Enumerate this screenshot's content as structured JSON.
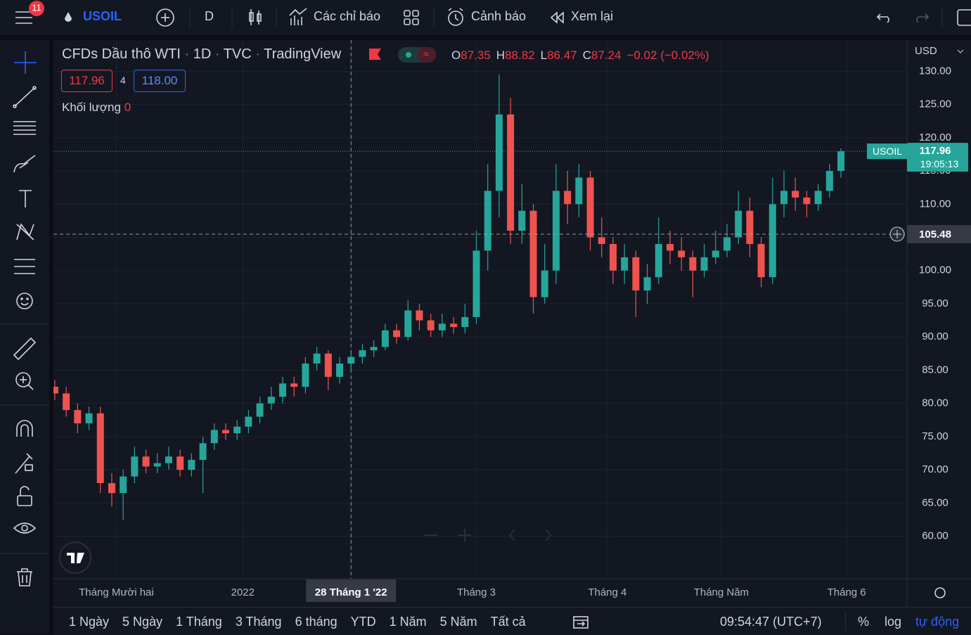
{
  "toolbar": {
    "badge": "11",
    "symbol": "USOIL",
    "interval": "D",
    "indicators": "Các chỉ báo",
    "alerts": "Cảnh báo",
    "replay": "Xem lại"
  },
  "legend": {
    "name": "CFDs Dầu thô WTI",
    "interval": "1D",
    "exchange": "TVC",
    "source": "TradingView",
    "ohlc": [
      {
        "label": "O",
        "value": "87.35"
      },
      {
        "label": "H",
        "value": "88.82"
      },
      {
        "label": "L",
        "value": "86.47"
      },
      {
        "label": "C",
        "value": "87.24"
      }
    ],
    "change": "−0.02 (−0.02%)",
    "bid": "117.96",
    "spread": "4",
    "ask": "118.00",
    "volume_label": "Khối lượng",
    "volume_value": "0"
  },
  "chart_data": {
    "type": "candlestick",
    "currency": "USD",
    "up_color": "#26a69a",
    "down_color": "#ef5350",
    "open": [
      82.5,
      81.5,
      79,
      77,
      78.5,
      68,
      66.5,
      69,
      72,
      70.5,
      71,
      72,
      70,
      71.5,
      74,
      76,
      75.5,
      76.5,
      78,
      80,
      81,
      83,
      82.5,
      86,
      87.5,
      84,
      86,
      87,
      88,
      88.5,
      91,
      90,
      94,
      92.5,
      91,
      92,
      91.5,
      93,
      103,
      112,
      123.5,
      106,
      109,
      96,
      100,
      112,
      110,
      114,
      105,
      104,
      100,
      102,
      97,
      99,
      104,
      103,
      102,
      100,
      102,
      103,
      105,
      109,
      104,
      99,
      110,
      112,
      111,
      110,
      112,
      115
    ],
    "high": [
      83.5,
      82.5,
      80,
      79.5,
      79.5,
      69.5,
      70,
      73.5,
      73,
      72.5,
      73.5,
      73,
      72.5,
      75,
      77,
      77,
      77.5,
      79,
      81,
      82.5,
      84,
      84,
      87,
      88.5,
      88,
      87,
      88,
      89,
      89.5,
      92,
      92,
      95.5,
      95,
      93.5,
      93.5,
      93,
      95,
      106,
      116,
      129.5,
      126,
      113,
      110,
      104,
      116,
      115,
      116,
      115,
      108,
      105,
      104,
      103,
      101,
      108,
      106,
      105,
      103,
      104,
      106,
      107,
      112,
      111,
      105,
      114,
      115,
      114,
      112,
      113,
      116,
      118.4
    ],
    "low": [
      80.5,
      78,
      75.5,
      76,
      66.5,
      64.5,
      62.5,
      68,
      69.5,
      69.5,
      70,
      69,
      69,
      66.5,
      73,
      74.5,
      74.5,
      75.5,
      77,
      79,
      80,
      81,
      81.5,
      85,
      82,
      83,
      85,
      86,
      87,
      88,
      89,
      89.5,
      91,
      90,
      90,
      90.5,
      90.5,
      92,
      100,
      108,
      104,
      104,
      93.5,
      95,
      98,
      107,
      108,
      103,
      102,
      98,
      98,
      93,
      95,
      98,
      101,
      100,
      96,
      99,
      101,
      102,
      104,
      102,
      97.5,
      98,
      108,
      109,
      108,
      109,
      111,
      114
    ],
    "close": [
      81.5,
      79,
      77,
      78.5,
      68,
      66.5,
      69,
      72,
      70.5,
      71,
      72,
      70,
      71.5,
      74,
      76,
      75.5,
      76.5,
      78,
      80,
      81,
      83,
      82.5,
      86,
      87.5,
      84,
      86,
      87,
      88,
      88.5,
      91,
      90,
      94,
      92.5,
      91,
      92,
      91.5,
      93,
      103,
      112,
      123.5,
      106,
      109,
      96,
      100,
      112,
      110,
      114,
      105,
      104,
      100,
      102,
      97,
      99,
      104,
      103,
      102,
      100,
      102,
      103,
      105,
      109,
      104,
      99,
      110,
      112,
      111,
      110,
      112,
      115,
      117.96
    ],
    "ylim": [
      53.6,
      134.7
    ],
    "yticks": [
      {
        "value": 60,
        "label": "60.00"
      },
      {
        "value": 65,
        "label": "65.00"
      },
      {
        "value": 70,
        "label": "70.00"
      },
      {
        "value": 75,
        "label": "75.00"
      },
      {
        "value": 80,
        "label": "80.00"
      },
      {
        "value": 85,
        "label": "85.00"
      },
      {
        "value": 90,
        "label": "90.00"
      },
      {
        "value": 95,
        "label": "95.00"
      },
      {
        "value": 100,
        "label": "100.00"
      },
      {
        "value": 105,
        "label": "105.00"
      },
      {
        "value": 110,
        "label": "110.00"
      },
      {
        "value": 115,
        "label": "115.00"
      },
      {
        "value": 120,
        "label": "120.00"
      },
      {
        "value": 125,
        "label": "125.00"
      },
      {
        "value": 130,
        "label": "130.00"
      }
    ],
    "xlim": [
      -0.12,
      74.8
    ],
    "xticks": [
      {
        "value": 5.4,
        "label": "Tháng Mười hai"
      },
      {
        "value": 16.5,
        "label": "2022"
      },
      {
        "value": 26,
        "label": "28 Tháng 1 '22",
        "crosshair": true
      },
      {
        "value": 37,
        "label": "Tháng 3"
      },
      {
        "value": 48.5,
        "label": "Tháng 4"
      },
      {
        "value": 58.5,
        "label": "Tháng Năm"
      },
      {
        "value": 69.5,
        "label": "Tháng 6"
      }
    ],
    "grid": true,
    "last_price": 117.96,
    "last_symbol": "USOIL",
    "countdown": "19:05:13",
    "crosshair_price": 105.48
  },
  "footer": {
    "ranges": [
      "1 Ngày",
      "5 Ngày",
      "1 Tháng",
      "3 Tháng",
      "6 tháng",
      "YTD",
      "1 Năm",
      "5 Năm",
      "Tất cả"
    ],
    "clock": "09:54:47 (UTC+7)",
    "percent": "%",
    "log": "log",
    "auto": "tự động"
  }
}
